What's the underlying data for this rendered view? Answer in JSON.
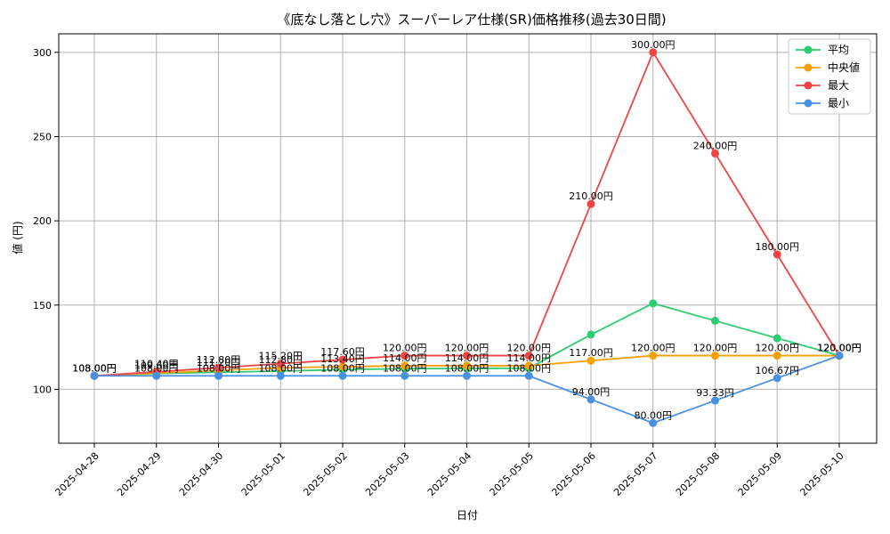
{
  "chart_data": {
    "type": "line",
    "title": "《底なし落とし穴》スーパーレア仕様(SR)価格推移(過去30日間)",
    "xlabel": "日付",
    "ylabel": "値 (円)",
    "categories": [
      "2025-04-28",
      "2025-04-29",
      "2025-04-30",
      "2025-05-01",
      "2025-05-02",
      "2025-05-03",
      "2025-05-04",
      "2025-05-05",
      "2025-05-06",
      "2025-05-07",
      "2025-05-08",
      "2025-05-09",
      "2025-05-10"
    ],
    "ylim": [
      68,
      311
    ],
    "yticks": [
      100,
      150,
      200,
      250,
      300
    ],
    "grid": true,
    "legend_position": "top-right",
    "series": [
      {
        "name": "平均",
        "color": "#2ecc71",
        "values": [
          108,
          109.33,
          110.13,
          110.78,
          111.71,
          112.22,
          112.4,
          112.54,
          132.5,
          151.0,
          140.67,
          130.33,
          120.0
        ],
        "labeled": false
      },
      {
        "name": "中央値",
        "color": "#f5a000",
        "values": [
          108,
          109.6,
          111.2,
          112.8,
          113.4,
          114.0,
          114.0,
          114.0,
          117.0,
          120.0,
          120.0,
          120.0,
          120.0
        ],
        "labeled": true,
        "labels": [
          "108.00円",
          "109.60円",
          "111.20円",
          "112.80円",
          "113.40円",
          "114.00円",
          "114.00円",
          "114.00円",
          "117.00円",
          "120.00円",
          "120.00円",
          "120.00円",
          "120.00円"
        ]
      },
      {
        "name": "最大",
        "color": "#ef4444",
        "values": [
          108,
          110.4,
          112.8,
          115.2,
          117.6,
          120.0,
          120.0,
          120.0,
          210.0,
          300.0,
          240.0,
          180.0,
          120.0
        ],
        "labeled": true,
        "labels": [
          "108.00円",
          "110.40円",
          "112.80円",
          "115.20円",
          "117.60円",
          "120.00円",
          "120.00円",
          "120.00円",
          "210.00円",
          "300.00円",
          "240.00円",
          "180.00円",
          "120.00円"
        ]
      },
      {
        "name": "最小",
        "color": "#4a90e2",
        "values": [
          108,
          108,
          108,
          108,
          108,
          108,
          108,
          108,
          94.0,
          80.0,
          93.33,
          106.67,
          120.0
        ],
        "labeled": true,
        "labels": [
          "108.00円",
          "108.00円",
          "108.00円",
          "108.00円",
          "108.00円",
          "108.00円",
          "108.00円",
          "108.00円",
          "94.00円",
          "80.00円",
          "93.33円",
          "106.67円",
          "120.00円"
        ]
      }
    ]
  }
}
